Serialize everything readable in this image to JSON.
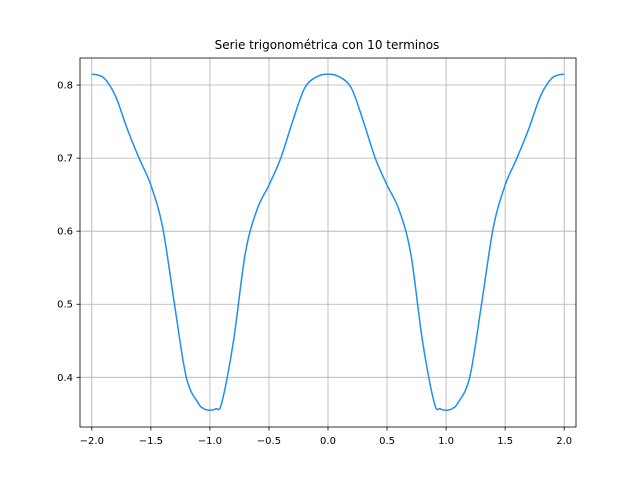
{
  "chart_data": {
    "type": "line",
    "title": "Serie trigonométrica con 10 terminos",
    "xlabel": "",
    "ylabel": "",
    "xlim": [
      -2.1,
      2.1
    ],
    "ylim": [
      0.332,
      0.837
    ],
    "grid": true,
    "line_color": "#1f8fef",
    "x_ticks": [
      -2.0,
      -1.5,
      -1.0,
      -0.5,
      0.0,
      0.5,
      1.0,
      1.5,
      2.0
    ],
    "x_tick_labels": [
      "−2.0",
      "−1.5",
      "−1.0",
      "−0.5",
      "0.0",
      "0.5",
      "1.0",
      "1.5",
      "2.0"
    ],
    "y_ticks": [
      0.4,
      0.5,
      0.6,
      0.7,
      0.8
    ],
    "y_tick_labels": [
      "0.4",
      "0.5",
      "0.6",
      "0.7",
      "0.8"
    ],
    "series": [
      {
        "x": [
          -2.0,
          -1.9,
          -1.8,
          -1.7,
          -1.6,
          -1.5,
          -1.4,
          -1.3,
          -1.2,
          -1.1,
          -1.05,
          -1.0,
          -0.95,
          -0.9,
          -0.8,
          -0.7,
          -0.6,
          -0.5,
          -0.4,
          -0.3,
          -0.2,
          -0.1,
          0.0,
          0.1,
          0.2,
          0.3,
          0.4,
          0.5,
          0.6,
          0.7,
          0.8,
          0.9,
          0.95,
          1.0,
          1.05,
          1.1,
          1.2,
          1.3,
          1.4,
          1.5,
          1.6,
          1.7,
          1.8,
          1.9,
          2.0
        ],
        "values": [
          0.815,
          0.81,
          0.785,
          0.74,
          0.7,
          0.663,
          0.605,
          0.5,
          0.4,
          0.365,
          0.357,
          0.355,
          0.357,
          0.365,
          0.45,
          0.57,
          0.63,
          0.663,
          0.7,
          0.75,
          0.795,
          0.811,
          0.815,
          0.811,
          0.795,
          0.75,
          0.7,
          0.663,
          0.63,
          0.57,
          0.45,
          0.365,
          0.357,
          0.355,
          0.357,
          0.365,
          0.4,
          0.5,
          0.605,
          0.663,
          0.7,
          0.74,
          0.785,
          0.81,
          0.815
        ]
      }
    ]
  }
}
